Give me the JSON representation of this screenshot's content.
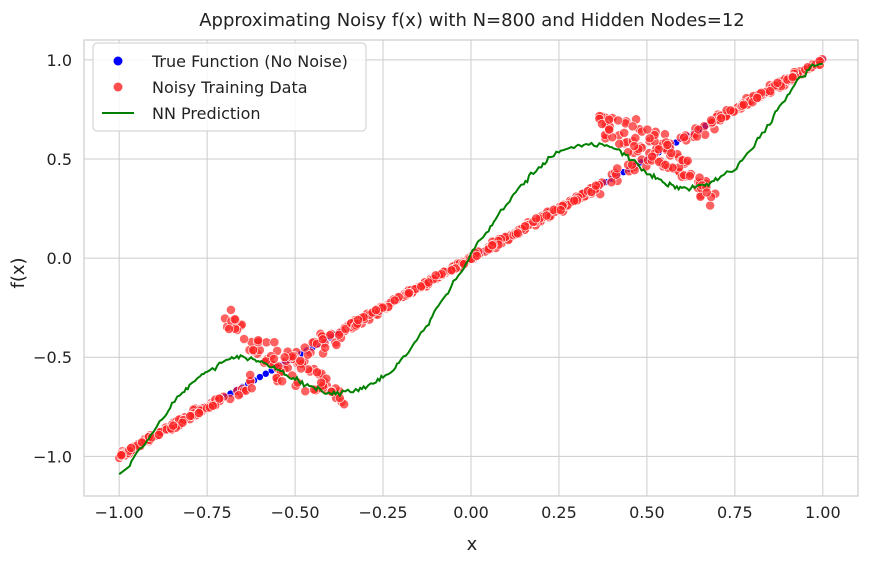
{
  "chart_data": {
    "type": "scatter",
    "title": "Approximating Noisy f(x) with N=800 and Hidden Nodes=12",
    "xlabel": "x",
    "ylabel": "f(x)",
    "xlim": [
      -1.1,
      1.1
    ],
    "ylim": [
      -1.2,
      1.1
    ],
    "x_ticks": [
      -1.0,
      -0.75,
      -0.5,
      -0.25,
      0.0,
      0.25,
      0.5,
      0.75,
      1.0
    ],
    "x_tick_labels": [
      "−1.00",
      "−0.75",
      "−0.50",
      "−0.25",
      "0.00",
      "0.25",
      "0.50",
      "0.75",
      "1.00"
    ],
    "y_ticks": [
      -1.0,
      -0.5,
      0.0,
      0.5,
      1.0
    ],
    "y_tick_labels": [
      "−1.0",
      "−0.5",
      "0.0",
      "0.5",
      "1.0"
    ],
    "grid": true,
    "legend_position": "top-left",
    "series": [
      {
        "name": "True Function (No Noise)",
        "kind": "scatter",
        "color": "#0000ff",
        "function": "piecewise: y = x for |x| outside the folds; hysteresis folds near x = ±0.35..0.7",
        "segments": [
          {
            "x": [
              -1.0,
              1.0
            ],
            "y": [
              -1.0,
              1.0
            ],
            "note": "diagonal line"
          },
          {
            "x": [
              -0.69,
              -0.38
            ],
            "y": [
              -0.3,
              -0.7
            ],
            "note": "lower fold connector"
          },
          {
            "x": [
              0.38,
              0.69
            ],
            "y": [
              0.7,
              0.3
            ],
            "note": "upper fold connector"
          }
        ]
      },
      {
        "name": "Noisy Training Data",
        "kind": "scatter",
        "color": "#ff2222",
        "n_points": 800
      },
      {
        "name": "NN Prediction",
        "kind": "line",
        "color": "#008000",
        "x": [
          -1.0,
          -0.97,
          -0.95,
          -0.92,
          -0.9,
          -0.87,
          -0.85,
          -0.82,
          -0.8,
          -0.77,
          -0.75,
          -0.72,
          -0.7,
          -0.68,
          -0.66,
          -0.64,
          -0.62,
          -0.6,
          -0.58,
          -0.56,
          -0.54,
          -0.52,
          -0.5,
          -0.48,
          -0.46,
          -0.44,
          -0.42,
          -0.4,
          -0.38,
          -0.35,
          -0.32,
          -0.3,
          -0.27,
          -0.25,
          -0.22,
          -0.2,
          -0.17,
          -0.15,
          -0.12,
          -0.1,
          -0.07,
          -0.05,
          -0.02,
          0.0,
          0.02,
          0.05,
          0.07,
          0.1,
          0.12,
          0.15,
          0.17,
          0.2,
          0.22,
          0.25,
          0.27,
          0.3,
          0.32,
          0.35,
          0.38,
          0.4,
          0.42,
          0.44,
          0.46,
          0.48,
          0.5,
          0.52,
          0.54,
          0.56,
          0.58,
          0.6,
          0.62,
          0.64,
          0.66,
          0.68,
          0.7,
          0.72,
          0.75,
          0.77,
          0.8,
          0.82,
          0.85,
          0.87,
          0.9,
          0.92,
          0.95,
          0.97,
          1.0
        ],
        "y": [
          -1.09,
          -1.05,
          -0.98,
          -0.92,
          -0.86,
          -0.8,
          -0.74,
          -0.68,
          -0.64,
          -0.6,
          -0.57,
          -0.54,
          -0.52,
          -0.51,
          -0.5,
          -0.5,
          -0.51,
          -0.52,
          -0.54,
          -0.55,
          -0.57,
          -0.59,
          -0.61,
          -0.63,
          -0.64,
          -0.66,
          -0.67,
          -0.68,
          -0.68,
          -0.67,
          -0.66,
          -0.65,
          -0.62,
          -0.6,
          -0.56,
          -0.52,
          -0.46,
          -0.4,
          -0.33,
          -0.26,
          -0.19,
          -0.12,
          -0.05,
          0.02,
          0.08,
          0.14,
          0.2,
          0.26,
          0.32,
          0.37,
          0.42,
          0.46,
          0.5,
          0.53,
          0.55,
          0.56,
          0.57,
          0.57,
          0.57,
          0.56,
          0.54,
          0.52,
          0.49,
          0.46,
          0.43,
          0.41,
          0.39,
          0.37,
          0.36,
          0.35,
          0.35,
          0.36,
          0.37,
          0.38,
          0.4,
          0.42,
          0.45,
          0.49,
          0.55,
          0.61,
          0.68,
          0.75,
          0.82,
          0.88,
          0.93,
          0.97,
          0.98
        ]
      }
    ]
  }
}
